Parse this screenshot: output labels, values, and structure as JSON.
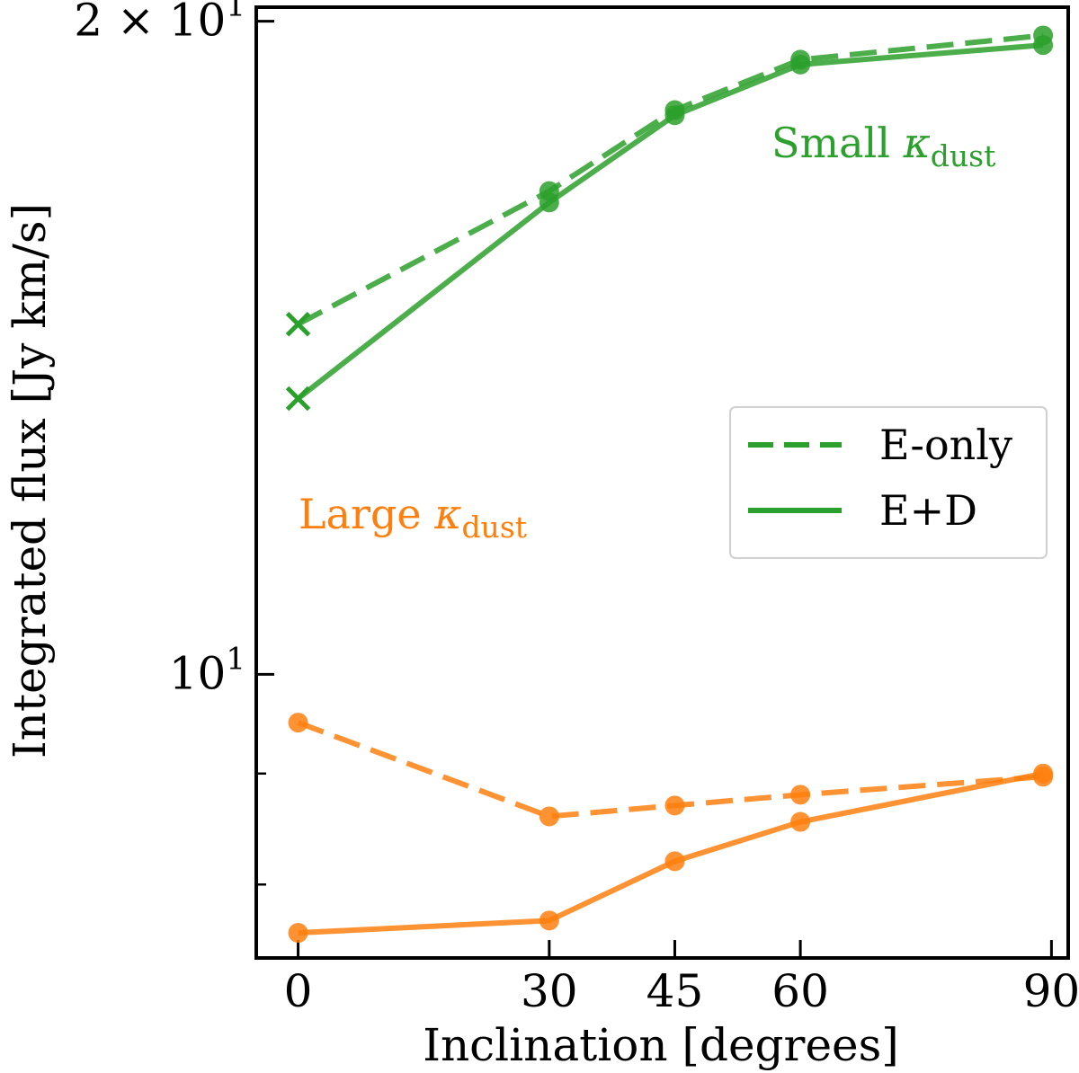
{
  "chart_data": {
    "type": "line",
    "xlabel": "Inclination [degrees]",
    "ylabel": "Integrated flux [Jy km/s]",
    "yscale": "log",
    "xlim": [
      -5,
      92
    ],
    "ylim": [
      7.4,
      20.3
    ],
    "x": [
      0,
      30,
      45,
      60,
      89
    ],
    "xticks": [
      {
        "value": 0,
        "label": "0"
      },
      {
        "value": 30,
        "label": "30"
      },
      {
        "value": 45,
        "label": "45"
      },
      {
        "value": 60,
        "label": "60"
      },
      {
        "value": 90,
        "label": "90"
      }
    ],
    "yticks_major": [
      {
        "value": 10,
        "base": "10",
        "exp": "1"
      },
      {
        "value": 20,
        "base": "2 × 10",
        "exp": "1"
      }
    ],
    "yticks_minor": [
      8,
      9
    ],
    "series": [
      {
        "name": "Small κdust E-only",
        "group": "small",
        "style": "dashed",
        "color": "#2ca02c",
        "values": [
          14.5,
          16.7,
          18.2,
          19.2,
          19.7
        ],
        "markers": [
          "x",
          "o",
          "o",
          "o",
          "o"
        ]
      },
      {
        "name": "Small κdust E+D",
        "group": "small",
        "style": "solid",
        "color": "#2ca02c",
        "values": [
          13.4,
          16.5,
          18.1,
          19.1,
          19.5
        ],
        "markers": [
          "x",
          "o",
          "o",
          "o",
          "o"
        ]
      },
      {
        "name": "Large κdust E-only",
        "group": "large",
        "style": "dashed",
        "color": "#ff7f0e",
        "values": [
          9.5,
          8.6,
          8.7,
          8.8,
          8.97
        ],
        "markers": [
          "o",
          "o",
          "o",
          "o",
          "o"
        ]
      },
      {
        "name": "Large κdust E+D",
        "group": "large",
        "style": "solid",
        "color": "#ff7f0e",
        "values": [
          7.6,
          7.7,
          8.2,
          8.55,
          9.0
        ],
        "markers": [
          "o",
          "o",
          "o",
          "o",
          "o"
        ]
      }
    ],
    "annotations": [
      {
        "text": "Small ",
        "italic": "κ",
        "sub": "dust",
        "color": "#2ca02c",
        "position": "upper-right"
      },
      {
        "text": "Large ",
        "italic": "κ",
        "sub": "dust",
        "color": "#ff7f0e",
        "position": "middle-left"
      }
    ],
    "legend": {
      "placement": "center-right",
      "entries": [
        {
          "label": "E-only",
          "style": "dashed",
          "color": "#2ca02c"
        },
        {
          "label": "E+D",
          "style": "solid",
          "color": "#2ca02c"
        }
      ]
    }
  }
}
